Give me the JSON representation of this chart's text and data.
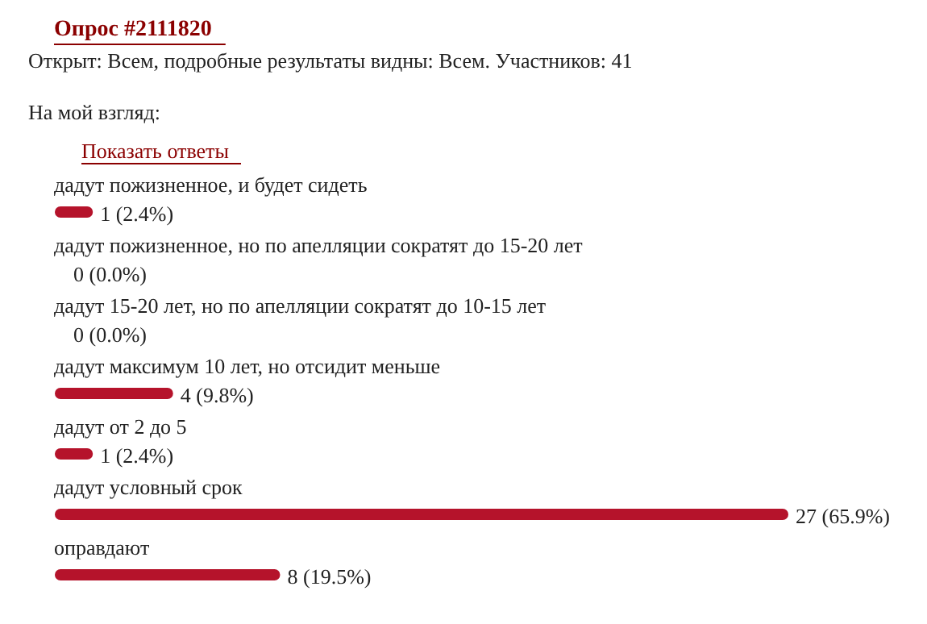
{
  "chart_data": {
    "type": "bar",
    "orientation": "horizontal",
    "title": "Опрос #2111820",
    "subtitle": "Открыт: Всем, подробные результаты видны: Всем. Участников: 41",
    "annotations": [
      "На мой взгляд:",
      "Показать ответы"
    ],
    "categories": [
      "дадут пожизненное, и будет сидеть",
      "дадут пожизненное, но по апелляции сократят до 15-20 лет",
      "дадут 15-20 лет, но по апелляции сократят до 10-15 лет",
      "дадут максимум 10 лет, но отсидит меньше",
      "дадут от 2 до 5",
      "дадут условный срок",
      "оправдают"
    ],
    "values": [
      1,
      0,
      0,
      4,
      1,
      27,
      8
    ],
    "value_labels": [
      "1 (2.4%)",
      "0 (0.0%)",
      "0 (0.0%)",
      "4 (9.8%)",
      "1 (2.4%)",
      "27 (65.9%)",
      "8 (19.5%)"
    ],
    "color": "#b5132b",
    "grid": false
  }
}
